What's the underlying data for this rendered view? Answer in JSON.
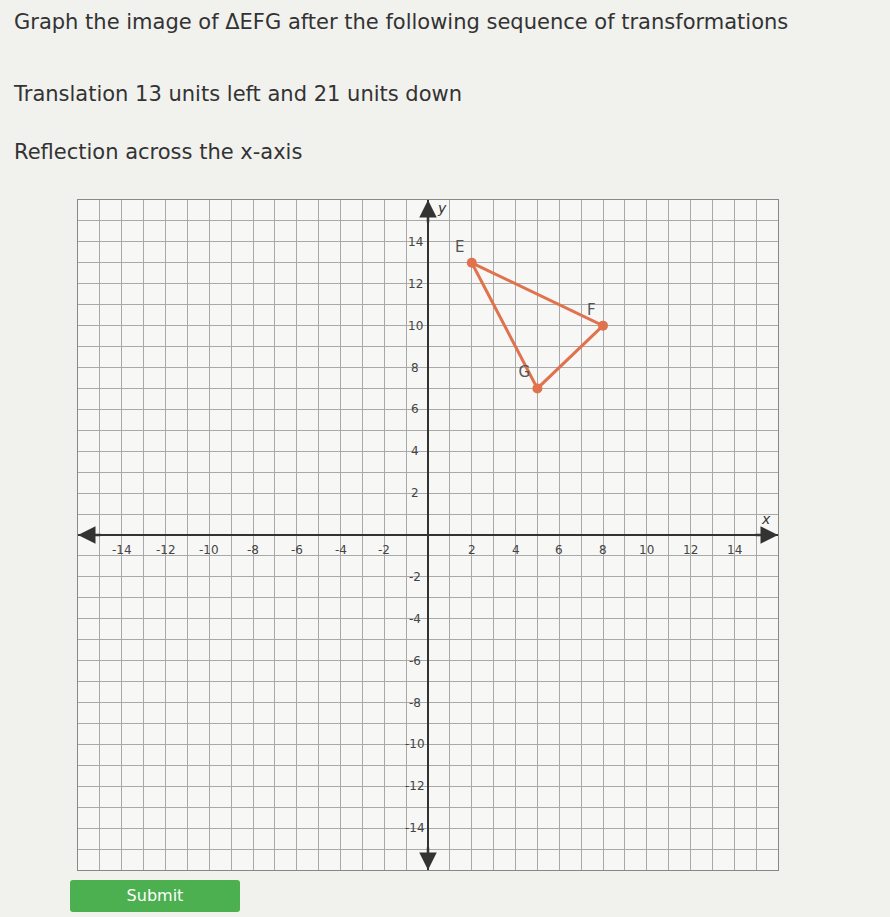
{
  "chart_data": {
    "type": "line",
    "title": "Graph the image of ΔEFG after the following sequence of transformations",
    "instructions": [
      "Translation 13 units left and 21 units down",
      "Reflection across the x-axis"
    ],
    "x_label": "x",
    "y_label": "y",
    "x": [
      2,
      8,
      5
    ],
    "values": [
      13,
      10,
      7
    ],
    "point_labels": [
      "E",
      "F",
      "G"
    ],
    "color": "#e0724e",
    "marker": "circle",
    "xlim": [
      -16,
      16
    ],
    "ylim": [
      -16,
      16
    ],
    "xticks": [
      -14,
      -12,
      -10,
      -8,
      -6,
      -4,
      -2,
      2,
      4,
      6,
      8,
      10,
      12,
      14
    ],
    "yticks": [
      -14,
      -12,
      -10,
      -8,
      -6,
      -4,
      -2,
      2,
      4,
      6,
      8,
      10,
      12,
      14
    ],
    "grid": true,
    "button": "Submit"
  }
}
